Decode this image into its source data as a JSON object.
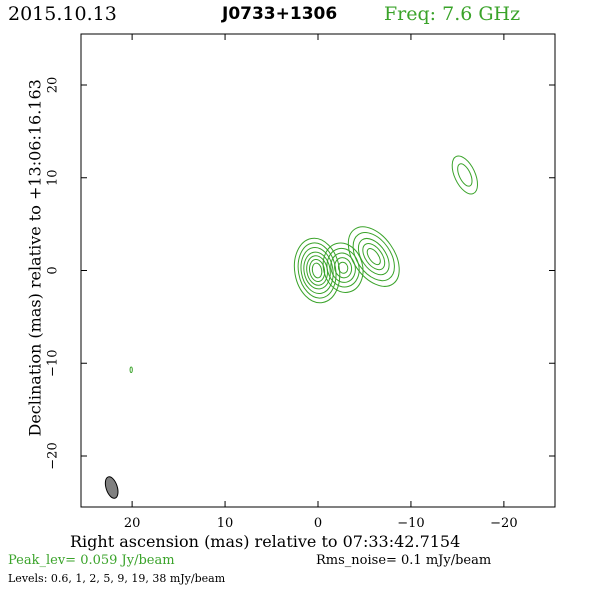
{
  "header": {
    "date": "2015.10.13",
    "source": "J0733+1306",
    "freq": "Freq: 7.6 GHz"
  },
  "chart_data": {
    "type": "contour",
    "xlabel": "Right ascension (mas) relative to 07:33:42.7154",
    "ylabel": "Declination (mas) relative to +13:06:16.163",
    "xlim": [
      25.5,
      -25.5
    ],
    "ylim": [
      -25.5,
      25.5
    ],
    "xticks": [
      20,
      10,
      0,
      -10,
      -20
    ],
    "yticks": [
      20,
      10,
      0,
      -10,
      -20
    ],
    "xtick_labels": [
      "20",
      "10",
      "0",
      "−10",
      "−20"
    ],
    "ytick_labels": [
      "20",
      "10",
      "0",
      "−10",
      "−20"
    ],
    "contour_color": "#3aa32a",
    "components": [
      {
        "ra": 0.1,
        "dec": 0.0,
        "rx": [
          0.5,
          0.8,
          1.1,
          1.4,
          1.7,
          2.0,
          2.4
        ],
        "ry": [
          0.8,
          1.2,
          1.6,
          2.0,
          2.5,
          3.0,
          3.5
        ],
        "angle": -10
      },
      {
        "ra": -2.7,
        "dec": 0.3,
        "rx": [
          0.5,
          0.9,
          1.3,
          1.7,
          2.1
        ],
        "ry": [
          0.6,
          1.1,
          1.6,
          2.1,
          2.7
        ],
        "angle": -15
      },
      {
        "ra": -6.0,
        "dec": 1.5,
        "rx": [
          0.5,
          0.9,
          1.3,
          1.8,
          2.2
        ],
        "ry": [
          1.0,
          1.6,
          2.2,
          2.9,
          3.6
        ],
        "angle": -35
      },
      {
        "ra": -15.8,
        "dec": 10.3,
        "rx": [
          0.6,
          1.1
        ],
        "ry": [
          1.3,
          2.2
        ],
        "angle": -25
      },
      {
        "ra": 20.1,
        "dec": -10.7,
        "rx": [
          0.12
        ],
        "ry": [
          0.3
        ],
        "angle": 0
      }
    ],
    "beam": {
      "ra": 22.2,
      "dec": -23.4,
      "rx": 0.6,
      "ry": 1.2,
      "angle": -18,
      "fill": "#808080"
    },
    "peak_label": "Peak_lev=  0.059 Jy/beam",
    "rms_label": "Rms_noise=   0.1 mJy/beam",
    "levels_label": "Levels: 0.6,    1,    2,    5,    9,   19,   38 mJy/beam"
  }
}
